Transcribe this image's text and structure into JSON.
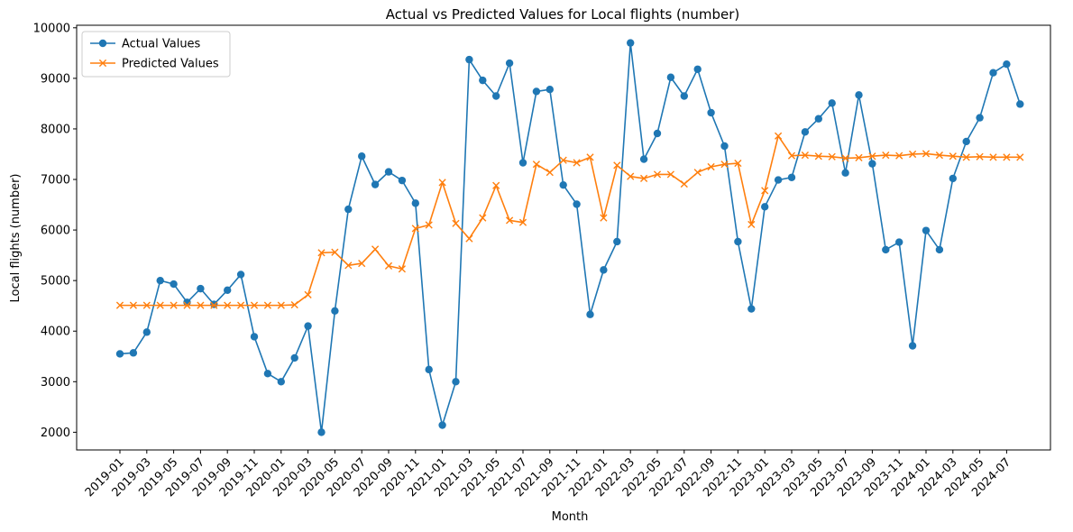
{
  "chart_data": {
    "type": "line",
    "title": "Actual vs Predicted Values for Local flights (number)",
    "xlabel": "Month",
    "ylabel": "Local flights (number)",
    "x": [
      "2019-01",
      "2019-02",
      "2019-03",
      "2019-04",
      "2019-05",
      "2019-06",
      "2019-07",
      "2019-08",
      "2019-09",
      "2019-10",
      "2019-11",
      "2019-12",
      "2020-01",
      "2020-02",
      "2020-03",
      "2020-04",
      "2020-05",
      "2020-06",
      "2020-07",
      "2020-08",
      "2020-09",
      "2020-10",
      "2020-11",
      "2020-12",
      "2021-01",
      "2021-02",
      "2021-03",
      "2021-04",
      "2021-05",
      "2021-06",
      "2021-07",
      "2021-08",
      "2021-09",
      "2021-10",
      "2021-11",
      "2021-12",
      "2022-01",
      "2022-02",
      "2022-03",
      "2022-04",
      "2022-05",
      "2022-06",
      "2022-07",
      "2022-08",
      "2022-09",
      "2022-10",
      "2022-11",
      "2022-12",
      "2023-01",
      "2023-02",
      "2023-03",
      "2023-04",
      "2023-05",
      "2023-06",
      "2023-07",
      "2023-08",
      "2023-09",
      "2023-10",
      "2023-11",
      "2023-12",
      "2024-01",
      "2024-02",
      "2024-03",
      "2024-04",
      "2024-05",
      "2024-06",
      "2024-07",
      "2024-08"
    ],
    "x_tick_labels": [
      "2019-01",
      "2019-03",
      "2019-05",
      "2019-07",
      "2019-09",
      "2019-11",
      "2020-01",
      "2020-03",
      "2020-05",
      "2020-07",
      "2020-09",
      "2020-11",
      "2021-01",
      "2021-03",
      "2021-05",
      "2021-07",
      "2021-09",
      "2021-11",
      "2022-01",
      "2022-03",
      "2022-05",
      "2022-07",
      "2022-09",
      "2022-11",
      "2023-01",
      "2023-03",
      "2023-05",
      "2023-07",
      "2023-09",
      "2023-11",
      "2024-01",
      "2024-03",
      "2024-05",
      "2024-07"
    ],
    "y_ticks": [
      2000,
      3000,
      4000,
      5000,
      6000,
      7000,
      8000,
      9000,
      10000
    ],
    "ylim": [
      1650,
      10050
    ],
    "grid": false,
    "legend_position": "top-left",
    "series": [
      {
        "name": "Actual Values",
        "color": "#1f77b4",
        "marker": "circle",
        "values": [
          3550,
          3570,
          3980,
          5000,
          4930,
          4570,
          4840,
          4530,
          4810,
          5120,
          3890,
          3160,
          3000,
          3470,
          4100,
          2000,
          4400,
          6410,
          7460,
          6900,
          7150,
          6980,
          6530,
          3240,
          2140,
          3000,
          9370,
          8960,
          8650,
          9300,
          7330,
          8740,
          8780,
          6890,
          6510,
          4330,
          5210,
          5770,
          9700,
          7400,
          7910,
          9020,
          8650,
          9180,
          8320,
          7660,
          5770,
          4440,
          6460,
          6990,
          7040,
          7940,
          8200,
          8510,
          7130,
          8670,
          7310,
          5610,
          5760,
          3710,
          5990,
          5610,
          7020,
          7750,
          8220,
          9110,
          9280,
          8490
        ]
      },
      {
        "name": "Predicted Values",
        "color": "#ff7f0e",
        "marker": "x",
        "values": [
          4510,
          4510,
          4510,
          4510,
          4510,
          4510,
          4510,
          4510,
          4510,
          4510,
          4510,
          4510,
          4510,
          4520,
          4720,
          5550,
          5560,
          5300,
          5340,
          5620,
          5290,
          5230,
          6030,
          6100,
          6940,
          6130,
          5830,
          6240,
          6880,
          6190,
          6150,
          7300,
          7140,
          7380,
          7330,
          7440,
          6240,
          7280,
          7060,
          7020,
          7100,
          7100,
          6910,
          7140,
          7250,
          7300,
          7320,
          6110,
          6780,
          7860,
          7470,
          7480,
          7460,
          7450,
          7420,
          7430,
          7460,
          7480,
          7470,
          7500,
          7510,
          7480,
          7460,
          7440,
          7450,
          7440,
          7440,
          7440
        ]
      }
    ]
  }
}
